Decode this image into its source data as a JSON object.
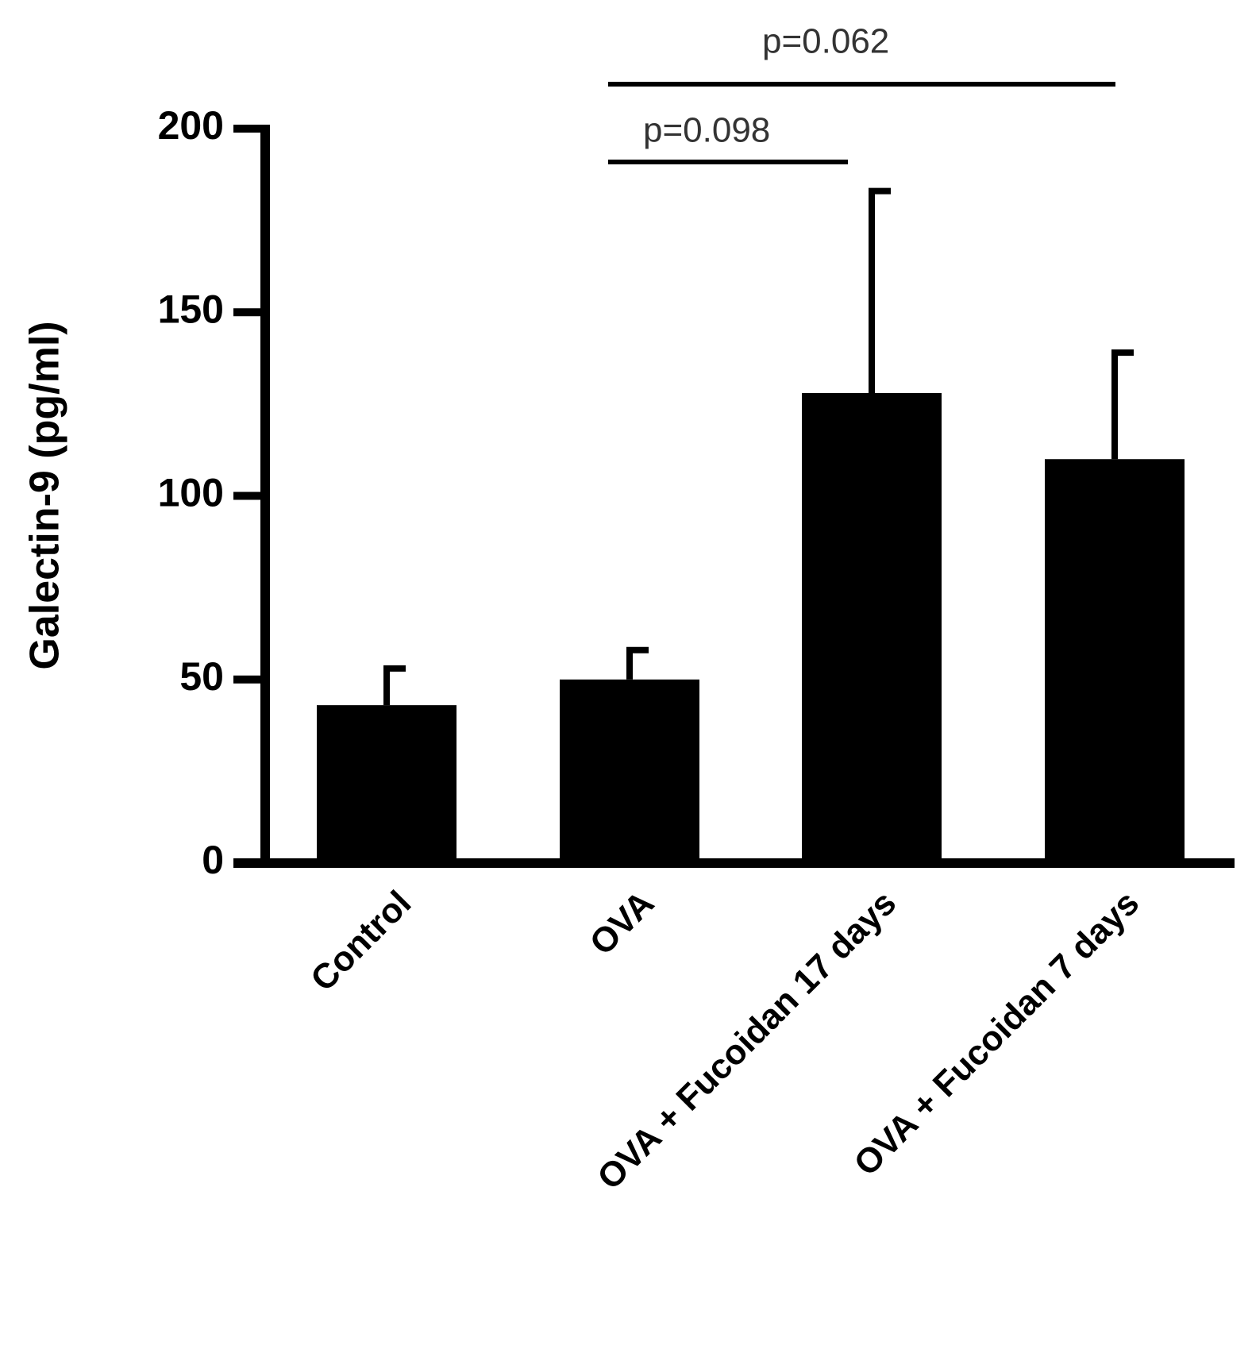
{
  "chart_data": {
    "type": "bar",
    "ylabel": "Galectin-9 (pg/ml)",
    "categories": [
      "Control",
      "OVA",
      "OVA + Fucoidan 17 days",
      "OVA + Fucoidan 7 days"
    ],
    "values": [
      43,
      50,
      128,
      110
    ],
    "errors": [
      10,
      8,
      55,
      29
    ],
    "color": "#000000",
    "ylim": [
      0,
      200
    ],
    "yticks": [
      0,
      50,
      100,
      150,
      200
    ],
    "grid": false,
    "annotations": [
      "p=0.098",
      "p=0.062"
    ]
  }
}
